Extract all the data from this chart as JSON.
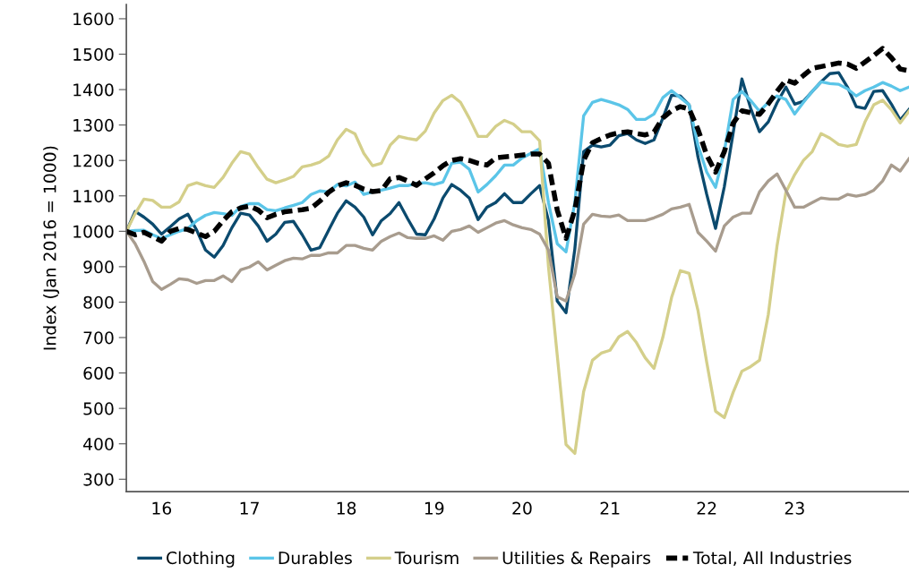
{
  "chart_data": {
    "type": "line",
    "ylabel": "Index (Jan 2016 = 1000)",
    "categories": [
      null,
      null,
      null,
      null,
      "16",
      null,
      null,
      null,
      null,
      null,
      null,
      null,
      null,
      null,
      "17",
      null,
      null,
      null,
      null,
      null,
      null,
      null,
      null,
      null,
      null,
      "18",
      null,
      null,
      null,
      null,
      null,
      null,
      null,
      null,
      null,
      "19",
      null,
      null,
      null,
      null,
      null,
      null,
      null,
      null,
      null,
      "20",
      null,
      null,
      null,
      null,
      null,
      null,
      null,
      null,
      null,
      "21",
      null,
      null,
      null,
      null,
      null,
      null,
      null,
      null,
      null,
      null,
      "22",
      null,
      null,
      null,
      null,
      null,
      null,
      null,
      null,
      null,
      "23",
      null,
      null,
      null,
      null,
      null,
      null,
      null,
      null,
      null,
      null,
      null,
      null,
      null
    ],
    "ylim": [
      265,
      1640
    ],
    "yticks": [
      300,
      400,
      500,
      600,
      700,
      800,
      900,
      1000,
      1100,
      1200,
      1300,
      1400,
      1500,
      1600
    ],
    "grid": false,
    "legend": "bottom",
    "marker": "none",
    "series": [
      {
        "name": "Clothing",
        "color": "#0b4a6e",
        "line_style": "solid",
        "values": [
          1000,
          1056,
          1040,
          1020,
          992,
          1013,
          1035,
          1048,
          1003,
          947,
          927,
          960,
          1010,
          1051,
          1046,
          1015,
          972,
          992,
          1025,
          1028,
          990,
          947,
          954,
          1003,
          1051,
          1086,
          1068,
          1040,
          990,
          1030,
          1050,
          1081,
          1035,
          992,
          990,
          1035,
          1094,
          1132,
          1116,
          1094,
          1033,
          1068,
          1081,
          1106,
          1081,
          1081,
          1106,
          1129,
          1030,
          803,
          770,
          950,
          1225,
          1243,
          1238,
          1243,
          1270,
          1276,
          1258,
          1248,
          1258,
          1319,
          1384,
          1382,
          1357,
          1210,
          1104,
          1008,
          1126,
          1277,
          1430,
          1347,
          1281,
          1309,
          1363,
          1407,
          1359,
          1367,
          1395,
          1422,
          1445,
          1448,
          1407,
          1352,
          1347,
          1395,
          1397,
          1359,
          1314,
          1344
        ]
      },
      {
        "name": "Durables",
        "color": "#5bc5e8",
        "line_style": "solid",
        "values": [
          1000,
          1002,
          1003,
          990,
          980,
          990,
          1000,
          1008,
          1030,
          1045,
          1053,
          1050,
          1045,
          1070,
          1078,
          1078,
          1061,
          1058,
          1066,
          1073,
          1081,
          1104,
          1114,
          1111,
          1132,
          1128,
          1139,
          1104,
          1111,
          1116,
          1122,
          1129,
          1129,
          1135,
          1137,
          1132,
          1139,
          1192,
          1195,
          1175,
          1111,
          1132,
          1157,
          1187,
          1187,
          1207,
          1220,
          1233,
          1081,
          965,
          942,
          1081,
          1326,
          1364,
          1372,
          1365,
          1357,
          1344,
          1316,
          1316,
          1331,
          1377,
          1397,
          1377,
          1357,
          1243,
          1167,
          1124,
          1225,
          1372,
          1395,
          1369,
          1339,
          1364,
          1382,
          1372,
          1331,
          1364,
          1395,
          1422,
          1417,
          1415,
          1402,
          1382,
          1397,
          1407,
          1420,
          1410,
          1397,
          1407
        ]
      },
      {
        "name": "Tourism",
        "color": "#d4cf8a",
        "line_style": "solid",
        "values": [
          1000,
          1050,
          1091,
          1087,
          1068,
          1068,
          1083,
          1129,
          1137,
          1129,
          1124,
          1152,
          1192,
          1225,
          1218,
          1180,
          1147,
          1137,
          1145,
          1155,
          1182,
          1187,
          1195,
          1212,
          1258,
          1288,
          1275,
          1220,
          1185,
          1192,
          1243,
          1268,
          1262,
          1258,
          1283,
          1334,
          1369,
          1384,
          1364,
          1319,
          1268,
          1268,
          1296,
          1313,
          1303,
          1281,
          1281,
          1255,
          900,
          650,
          398,
          373,
          547,
          636,
          656,
          664,
          702,
          717,
          686,
          643,
          613,
          700,
          813,
          889,
          881,
          777,
          630,
          492,
          474,
          545,
          605,
          618,
          636,
          765,
          960,
          1110,
          1160,
          1200,
          1225,
          1276,
          1263,
          1245,
          1240,
          1245,
          1309,
          1357,
          1370,
          1343,
          1306,
          1339
        ]
      },
      {
        "name": "Utilities & Repairs",
        "color": "#a89c8e",
        "line_style": "solid",
        "values": [
          1000,
          965,
          915,
          858,
          836,
          850,
          866,
          863,
          853,
          861,
          861,
          874,
          858,
          891,
          899,
          914,
          891,
          904,
          917,
          924,
          922,
          932,
          932,
          939,
          939,
          960,
          960,
          952,
          947,
          972,
          985,
          995,
          982,
          980,
          980,
          987,
          975,
          1000,
          1005,
          1015,
          997,
          1010,
          1023,
          1030,
          1018,
          1010,
          1005,
          992,
          947,
          815,
          803,
          880,
          1020,
          1048,
          1043,
          1041,
          1046,
          1030,
          1030,
          1030,
          1038,
          1048,
          1063,
          1068,
          1076,
          997,
          972,
          944,
          1015,
          1040,
          1051,
          1051,
          1111,
          1142,
          1162,
          1116,
          1068,
          1068,
          1081,
          1094,
          1091,
          1091,
          1104,
          1099,
          1104,
          1116,
          1142,
          1187,
          1170,
          1205
        ]
      },
      {
        "name": "Total, All Industries",
        "color": "#000000",
        "line_style": "dashed",
        "values": [
          1000,
          990,
          997,
          985,
          972,
          1000,
          1008,
          1005,
          995,
          985,
          1000,
          1030,
          1055,
          1066,
          1071,
          1060,
          1038,
          1048,
          1055,
          1058,
          1061,
          1065,
          1085,
          1110,
          1128,
          1137,
          1130,
          1119,
          1112,
          1115,
          1148,
          1152,
          1142,
          1130,
          1148,
          1165,
          1185,
          1200,
          1205,
          1200,
          1192,
          1187,
          1207,
          1210,
          1212,
          1215,
          1218,
          1218,
          1192,
          1060,
          980,
          1060,
          1200,
          1250,
          1262,
          1272,
          1278,
          1281,
          1276,
          1272,
          1280,
          1320,
          1340,
          1352,
          1345,
          1288,
          1215,
          1167,
          1225,
          1305,
          1340,
          1335,
          1330,
          1360,
          1395,
          1427,
          1418,
          1440,
          1460,
          1465,
          1470,
          1475,
          1472,
          1460,
          1478,
          1496,
          1516,
          1490,
          1458,
          1453
        ]
      }
    ]
  }
}
